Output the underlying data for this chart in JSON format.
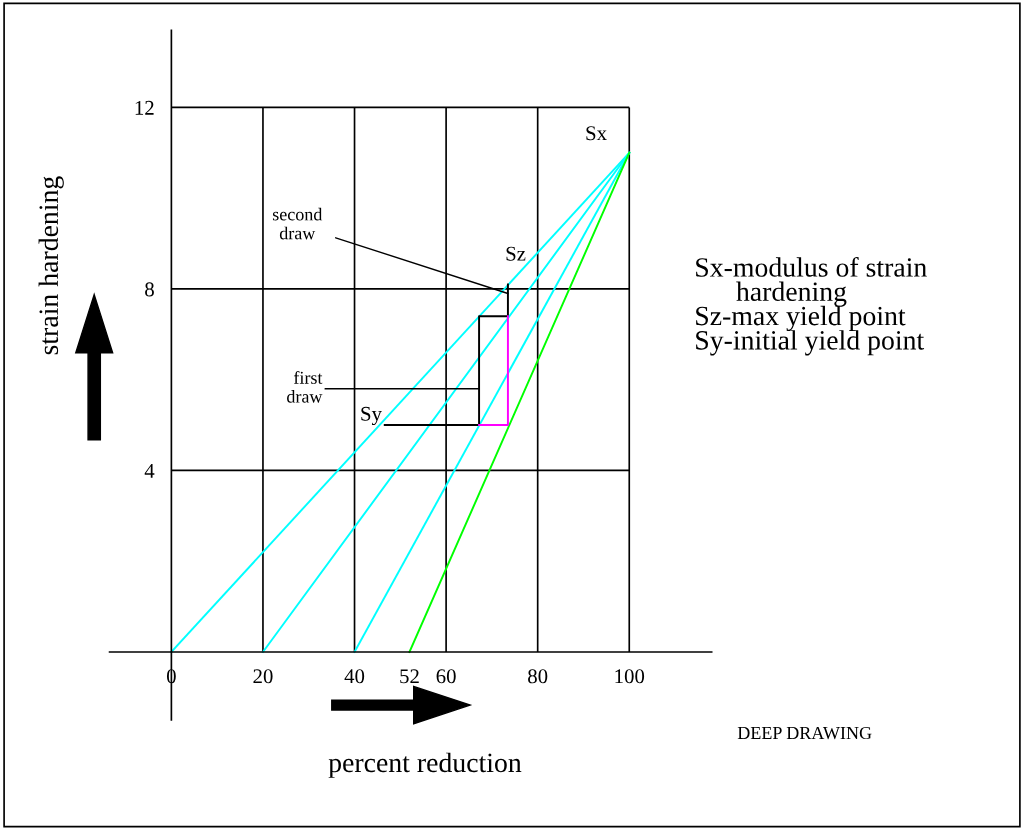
{
  "chart_data": {
    "type": "line",
    "xlabel": "percent reduction",
    "ylabel": "strain hardening",
    "xlim": [
      -13.5,
      118
    ],
    "ylim": [
      -1.5,
      13.7
    ],
    "xticks": [
      0,
      20,
      40,
      52,
      60,
      80,
      100
    ],
    "yticks": [
      4,
      8,
      12
    ],
    "grid": true,
    "marker": "none",
    "line_style": "solid",
    "series": [
      {
        "color": "#00ffff",
        "x": [
          0,
          100
        ],
        "values": [
          0,
          11
        ]
      },
      {
        "color": "#00ffff",
        "x": [
          20,
          100
        ],
        "values": [
          0,
          11
        ]
      },
      {
        "color": "#00ffff",
        "x": [
          40,
          100
        ],
        "values": [
          0,
          11
        ]
      },
      {
        "color": "#00ff00",
        "x": [
          52,
          100
        ],
        "values": [
          0,
          11
        ]
      },
      {
        "color": "#000000",
        "x": [
          46.6,
          67.2,
          67.2,
          73.5,
          73.5
        ],
        "values": [
          5,
          5,
          7.4,
          7.4,
          8.1
        ]
      },
      {
        "color": "#ff00ff",
        "x": [
          67.2,
          73.5,
          73.5
        ],
        "values": [
          5,
          5,
          7.4
        ]
      }
    ],
    "annotations": [
      {
        "text": "Sx",
        "x": 100,
        "y": 11
      },
      {
        "text": "Sz",
        "x": 73.5,
        "y": 8.1
      },
      {
        "text": "Sy",
        "x": 46.6,
        "y": 5
      },
      {
        "text": "first\ndraw",
        "x": 67.2,
        "y": 5.8
      },
      {
        "text": "second\ndraw",
        "x": 73.5,
        "y": 7.9
      },
      "Sx-modulus of strain\n      hardening\nSz-max yield point\nSy-initial yield point",
      "DEEP DRAWING"
    ]
  }
}
